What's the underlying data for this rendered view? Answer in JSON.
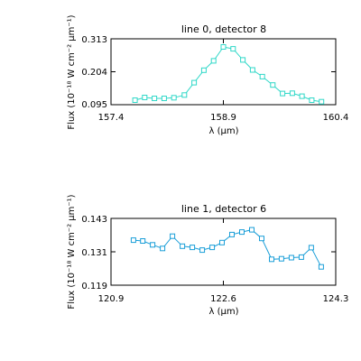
{
  "chart_data": [
    {
      "type": "line",
      "title": "line 0, detector 8",
      "xlabel": "λ (μm)",
      "ylabel": "Flux (10⁻¹⁸ W cm⁻² μm⁻¹)",
      "xlim": [
        157.4,
        160.4
      ],
      "ylim": [
        0.095,
        0.313
      ],
      "xticks": [
        "157.4",
        "158.9",
        "160.4"
      ],
      "yticks": [
        "0.095",
        "0.204",
        "0.313"
      ],
      "color": "#30d8c8",
      "marker": "square",
      "x": [
        157.72,
        157.85,
        157.98,
        158.11,
        158.24,
        158.38,
        158.51,
        158.64,
        158.77,
        158.9,
        159.03,
        159.16,
        159.29,
        159.42,
        159.56,
        159.69,
        159.82,
        159.95,
        160.08,
        160.21
      ],
      "y": [
        0.11,
        0.119,
        0.116,
        0.116,
        0.118,
        0.127,
        0.168,
        0.209,
        0.24,
        0.286,
        0.28,
        0.243,
        0.21,
        0.188,
        0.16,
        0.132,
        0.133,
        0.123,
        0.11,
        0.105
      ]
    },
    {
      "type": "line",
      "title": "line 1, detector 6",
      "xlabel": "λ (μm)",
      "ylabel": "Flux (10⁻¹⁸ W cm⁻² μm⁻¹)",
      "xlim": [
        120.9,
        124.3
      ],
      "ylim": [
        0.119,
        0.143
      ],
      "xticks": [
        "120.9",
        "122.6",
        "124.3"
      ],
      "yticks": [
        "0.119",
        "0.131",
        "0.143"
      ],
      "color": "#1a9ed8",
      "marker": "square",
      "x": [
        121.24,
        121.38,
        121.53,
        121.68,
        121.83,
        121.98,
        122.13,
        122.28,
        122.43,
        122.58,
        122.73,
        122.88,
        123.03,
        123.18,
        123.33,
        123.48,
        123.63,
        123.78,
        123.93,
        124.08
      ],
      "y": [
        0.1352,
        0.1349,
        0.1335,
        0.1322,
        0.1366,
        0.133,
        0.1326,
        0.1316,
        0.1326,
        0.1343,
        0.1372,
        0.1381,
        0.1389,
        0.1358,
        0.1283,
        0.1285,
        0.1289,
        0.1291,
        0.1325,
        0.1256
      ]
    }
  ]
}
